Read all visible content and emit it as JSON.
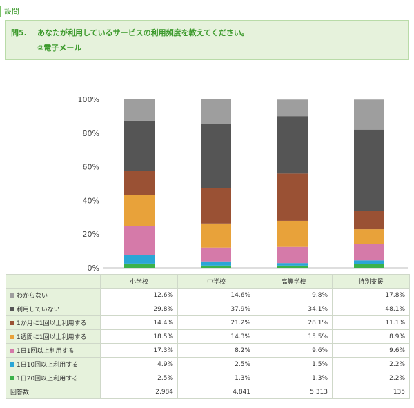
{
  "header": {
    "tag": "設問"
  },
  "question": {
    "number": "問5.",
    "text": "あなたが利用しているサービスの利用頻度を教えてください。",
    "sub": "②電子メール"
  },
  "table": {
    "row_label_header": "",
    "count_label": "回答数",
    "counts": [
      "2,984",
      "4,841",
      "5,313",
      "135"
    ]
  },
  "chart_data": {
    "type": "bar",
    "stacked": true,
    "ylim": [
      0,
      100
    ],
    "yticks": [
      "0%",
      "20%",
      "40%",
      "60%",
      "80%",
      "100%"
    ],
    "grid": false,
    "categories": [
      "小学校",
      "中学校",
      "高等学校",
      "特別支援"
    ],
    "series": [
      {
        "name": "1日20回以上利用する",
        "color": "#3bb24a",
        "values": [
          2.5,
          1.3,
          1.3,
          2.2
        ]
      },
      {
        "name": "1日10回以上利用する",
        "color": "#2aa6d6",
        "values": [
          4.9,
          2.5,
          1.5,
          2.2
        ]
      },
      {
        "name": "1日1回以上利用する",
        "color": "#d57aa9",
        "values": [
          17.3,
          8.2,
          9.6,
          9.6
        ]
      },
      {
        "name": "1週間に1回以上利用する",
        "color": "#e8a23a",
        "values": [
          18.5,
          14.3,
          15.5,
          8.9
        ]
      },
      {
        "name": "1か月に1回以上利用する",
        "color": "#9a5134",
        "values": [
          14.4,
          21.2,
          28.1,
          11.1
        ]
      },
      {
        "name": "利用していない",
        "color": "#555555",
        "values": [
          29.8,
          37.9,
          34.1,
          48.1
        ]
      },
      {
        "name": "わからない",
        "color": "#9e9e9e",
        "values": [
          12.6,
          14.6,
          9.8,
          17.8
        ]
      }
    ],
    "table_order": [
      "わからない",
      "利用していない",
      "1か月に1回以上利用する",
      "1週間に1回以上利用する",
      "1日1回以上利用する",
      "1日10回以上利用する",
      "1日20回以上利用する"
    ]
  }
}
